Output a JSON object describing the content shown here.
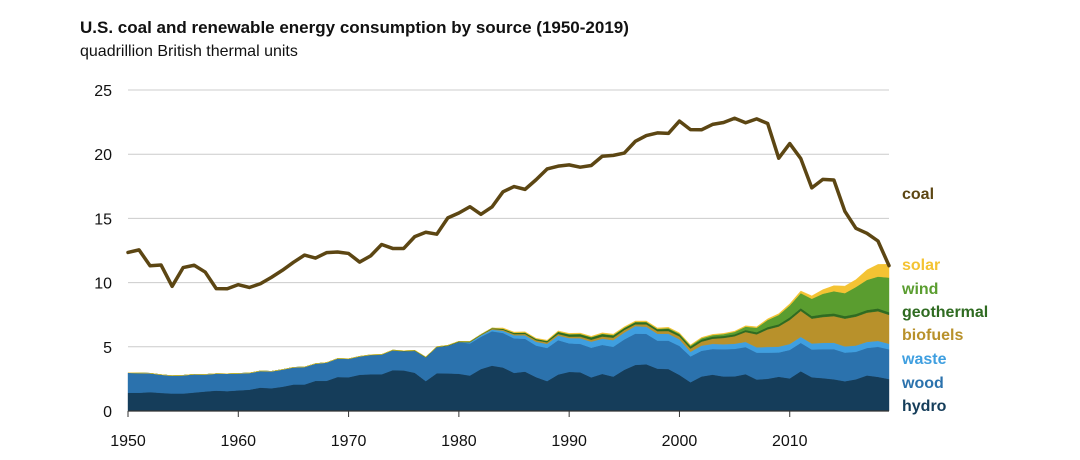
{
  "chart_data": {
    "type": "area",
    "title": "U.S. coal and renewable energy consumption by source (1950-2019)",
    "subtitle": "quadrillion British thermal units",
    "xlim": [
      1950,
      2019
    ],
    "ylim": [
      0,
      25
    ],
    "yticks": [
      0,
      5,
      10,
      15,
      20,
      25
    ],
    "xticks": [
      1950,
      1960,
      1970,
      1980,
      1990,
      2000,
      2010
    ],
    "grid": true,
    "legend": "direct labels at right",
    "x": [
      1950,
      1951,
      1952,
      1953,
      1954,
      1955,
      1956,
      1957,
      1958,
      1959,
      1960,
      1961,
      1962,
      1963,
      1964,
      1965,
      1966,
      1967,
      1968,
      1969,
      1970,
      1971,
      1972,
      1973,
      1974,
      1975,
      1976,
      1977,
      1978,
      1979,
      1980,
      1981,
      1982,
      1983,
      1984,
      1985,
      1986,
      1987,
      1988,
      1989,
      1990,
      1991,
      1992,
      1993,
      1994,
      1995,
      1996,
      1997,
      1998,
      1999,
      2000,
      2001,
      2002,
      2003,
      2004,
      2005,
      2006,
      2007,
      2008,
      2009,
      2010,
      2011,
      2012,
      2013,
      2014,
      2015,
      2016,
      2017,
      2018,
      2019
    ],
    "series": [
      {
        "name": "coal",
        "kind": "line",
        "color": "#5c4613",
        "values": [
          12.35,
          12.55,
          11.31,
          11.37,
          9.71,
          11.17,
          11.35,
          10.82,
          9.53,
          9.52,
          9.84,
          9.62,
          9.91,
          10.41,
          10.96,
          11.58,
          12.14,
          11.91,
          12.33,
          12.38,
          12.27,
          11.6,
          12.08,
          12.97,
          12.66,
          12.66,
          13.58,
          13.92,
          13.77,
          15.04,
          15.42,
          15.91,
          15.32,
          15.89,
          17.07,
          17.48,
          17.26,
          18.01,
          18.85,
          19.07,
          19.17,
          18.99,
          19.12,
          19.84,
          19.91,
          20.09,
          21.0,
          21.45,
          21.66,
          21.62,
          22.58,
          21.91,
          21.9,
          22.32,
          22.47,
          22.8,
          22.45,
          22.75,
          22.39,
          19.69,
          20.83,
          19.66,
          17.38,
          18.04,
          17.99,
          15.55,
          14.23,
          13.84,
          13.24,
          11.32
        ]
      },
      {
        "name": "hydro",
        "kind": "stacked-area",
        "color": "#153d5a",
        "values": [
          1.42,
          1.42,
          1.47,
          1.41,
          1.36,
          1.36,
          1.44,
          1.52,
          1.59,
          1.55,
          1.61,
          1.66,
          1.82,
          1.77,
          1.89,
          2.06,
          2.06,
          2.35,
          2.35,
          2.65,
          2.63,
          2.82,
          2.86,
          2.86,
          3.18,
          3.16,
          2.98,
          2.33,
          2.94,
          2.93,
          2.9,
          2.76,
          3.27,
          3.53,
          3.39,
          2.97,
          3.07,
          2.64,
          2.33,
          2.84,
          3.05,
          3.02,
          2.62,
          2.89,
          2.68,
          3.21,
          3.59,
          3.64,
          3.3,
          3.27,
          2.81,
          2.24,
          2.69,
          2.83,
          2.69,
          2.7,
          2.87,
          2.45,
          2.51,
          2.67,
          2.54,
          3.1,
          2.63,
          2.56,
          2.47,
          2.32,
          2.47,
          2.77,
          2.66,
          2.49
        ]
      },
      {
        "name": "wood",
        "kind": "stacked-area",
        "color": "#2b72ad",
        "values": [
          1.56,
          1.54,
          1.47,
          1.42,
          1.39,
          1.42,
          1.42,
          1.33,
          1.32,
          1.35,
          1.32,
          1.3,
          1.3,
          1.32,
          1.34,
          1.34,
          1.37,
          1.34,
          1.42,
          1.44,
          1.43,
          1.43,
          1.5,
          1.53,
          1.54,
          1.5,
          1.71,
          1.84,
          2.04,
          2.15,
          2.48,
          2.5,
          2.51,
          2.68,
          2.69,
          2.69,
          2.56,
          2.46,
          2.58,
          2.68,
          2.22,
          2.21,
          2.31,
          2.26,
          2.32,
          2.37,
          2.44,
          2.37,
          2.18,
          2.21,
          2.26,
          2.01,
          2.0,
          2.0,
          2.12,
          2.14,
          2.11,
          2.1,
          2.04,
          1.89,
          2.22,
          2.21,
          2.16,
          2.26,
          2.35,
          2.23,
          2.14,
          2.14,
          2.34,
          2.32
        ]
      },
      {
        "name": "waste",
        "kind": "stacked-area",
        "color": "#3f9fe0",
        "values": [
          0,
          0,
          0,
          0,
          0,
          0,
          0,
          0,
          0,
          0,
          0,
          0,
          0,
          0,
          0,
          0,
          0,
          0,
          0,
          0,
          0,
          0,
          0,
          0,
          0,
          0,
          0,
          0,
          0,
          0,
          0,
          0.09,
          0.11,
          0.13,
          0.17,
          0.24,
          0.26,
          0.29,
          0.32,
          0.35,
          0.41,
          0.44,
          0.47,
          0.48,
          0.52,
          0.53,
          0.58,
          0.55,
          0.54,
          0.54,
          0.51,
          0.36,
          0.4,
          0.4,
          0.39,
          0.4,
          0.4,
          0.41,
          0.44,
          0.45,
          0.46,
          0.46,
          0.47,
          0.49,
          0.5,
          0.48,
          0.49,
          0.47,
          0.46,
          0.43
        ]
      },
      {
        "name": "biofuels",
        "kind": "stacked-area",
        "color": "#b8912b",
        "values": [
          0,
          0,
          0,
          0,
          0,
          0,
          0,
          0,
          0,
          0,
          0,
          0,
          0,
          0,
          0,
          0,
          0,
          0,
          0,
          0,
          0,
          0,
          0,
          0,
          0,
          0,
          0,
          0,
          0,
          0,
          0,
          0.01,
          0.03,
          0.06,
          0.08,
          0.09,
          0.11,
          0.12,
          0.12,
          0.13,
          0.11,
          0.13,
          0.15,
          0.17,
          0.19,
          0.2,
          0.14,
          0.19,
          0.2,
          0.21,
          0.23,
          0.25,
          0.31,
          0.4,
          0.49,
          0.58,
          0.77,
          1.01,
          1.37,
          1.57,
          1.87,
          2.03,
          1.93,
          2.01,
          2.07,
          2.16,
          2.25,
          2.28,
          2.31,
          2.25
        ]
      },
      {
        "name": "geothermal",
        "kind": "stacked-area",
        "color": "#2f6b21",
        "values": [
          0,
          0,
          0,
          0,
          0,
          0,
          0,
          0,
          0,
          0,
          0,
          0,
          0,
          0,
          0,
          0,
          0,
          0,
          0,
          0,
          0.01,
          0.01,
          0.02,
          0.02,
          0.03,
          0.03,
          0.04,
          0.04,
          0.03,
          0.04,
          0.05,
          0.06,
          0.05,
          0.06,
          0.08,
          0.1,
          0.11,
          0.11,
          0.11,
          0.16,
          0.17,
          0.18,
          0.18,
          0.19,
          0.17,
          0.15,
          0.16,
          0.16,
          0.15,
          0.17,
          0.16,
          0.16,
          0.16,
          0.16,
          0.16,
          0.16,
          0.16,
          0.17,
          0.18,
          0.18,
          0.21,
          0.21,
          0.21,
          0.21,
          0.21,
          0.21,
          0.21,
          0.21,
          0.22,
          0.21
        ]
      },
      {
        "name": "wind",
        "kind": "stacked-area",
        "color": "#5a9d2f",
        "values": [
          0,
          0,
          0,
          0,
          0,
          0,
          0,
          0,
          0,
          0,
          0,
          0,
          0,
          0,
          0,
          0,
          0,
          0,
          0,
          0,
          0,
          0,
          0,
          0,
          0,
          0,
          0,
          0,
          0,
          0,
          0,
          0,
          0,
          0,
          0,
          0,
          0,
          0,
          0,
          0.02,
          0.03,
          0.03,
          0.03,
          0.03,
          0.04,
          0.03,
          0.03,
          0.03,
          0.03,
          0.05,
          0.06,
          0.07,
          0.11,
          0.12,
          0.14,
          0.18,
          0.26,
          0.34,
          0.55,
          0.72,
          0.92,
          1.17,
          1.34,
          1.6,
          1.73,
          1.78,
          2.1,
          2.34,
          2.48,
          2.69
        ]
      },
      {
        "name": "solar",
        "kind": "stacked-area",
        "color": "#f4c333",
        "values": [
          0,
          0,
          0,
          0,
          0,
          0,
          0,
          0,
          0,
          0,
          0,
          0,
          0,
          0,
          0,
          0,
          0,
          0,
          0,
          0,
          0,
          0,
          0,
          0,
          0,
          0,
          0,
          0,
          0,
          0,
          0,
          0,
          0,
          0,
          0.06,
          0.06,
          0.06,
          0.05,
          0.06,
          0.06,
          0.06,
          0.06,
          0.06,
          0.07,
          0.07,
          0.07,
          0.07,
          0.07,
          0.07,
          0.07,
          0.06,
          0.06,
          0.06,
          0.06,
          0.06,
          0.06,
          0.07,
          0.08,
          0.09,
          0.1,
          0.13,
          0.17,
          0.23,
          0.32,
          0.43,
          0.55,
          0.57,
          0.78,
          0.95,
          1.04
        ]
      }
    ]
  }
}
